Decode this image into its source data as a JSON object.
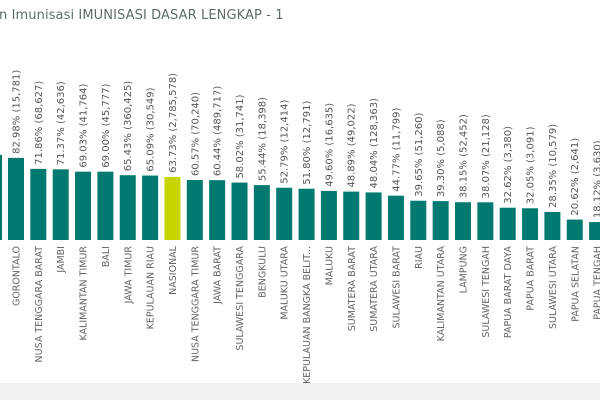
{
  "chart_data": {
    "type": "bar",
    "title": "n Imunisasi IMUNISASI DASAR LENGKAP - 1",
    "xlabel": "",
    "ylabel": "",
    "ylim": [
      0,
      100
    ],
    "grid": false,
    "legend": "none",
    "colors": {
      "bar": "#007a70",
      "highlight": "#c8d400"
    },
    "categories": [
      "GORONTALO",
      "NUSA TENGGARA BARAT",
      "JAMBI",
      "KALIMANTAN TIMUR",
      "BALI",
      "JAWA TIMUR",
      "KEPULAUAN RIAU",
      "NASIONAL",
      "NUSA TENGGARA TIMUR",
      "JAWA BARAT",
      "SULAWESI TENGGARA",
      "BENGKULU",
      "MALUKU UTARA",
      "KEPULAUAN BANGKA BELIT...",
      "MALUKU",
      "SUMATERA BARAT",
      "SUMATERA UTARA",
      "SULAWESI BARAT",
      "RIAU",
      "KALIMANTAN UTARA",
      "LAMPUNG",
      "SULAWESI TENGAH",
      "PAPUA BARAT DAYA",
      "PAPUA BARAT",
      "SULAWESI UTARA",
      "PAPUA SELATAN",
      "PAPUA TENGAH"
    ],
    "values": [
      82.98,
      71.86,
      71.37,
      69.03,
      69.0,
      65.43,
      65.09,
      63.73,
      60.57,
      60.44,
      58.02,
      55.44,
      52.79,
      51.8,
      49.6,
      48.89,
      48.04,
      44.77,
      39.65,
      39.3,
      38.15,
      38.07,
      32.62,
      32.05,
      28.35,
      20.62,
      18.12
    ],
    "counts": [
      "15,781",
      "68,627",
      "42,636",
      "41,764",
      "45,777",
      "360,425",
      "30,549",
      "2,785,578",
      "70,240",
      "489,717",
      "31,741",
      "18,398",
      "12,414",
      "12,791",
      "16,635",
      "49,022",
      "128,363",
      "11,799",
      "51,260",
      "5,088",
      "52,452",
      "21,128",
      "3,380",
      "3,091",
      "10,579",
      "2,641",
      "3,630"
    ],
    "highlight": "NASIONAL"
  }
}
